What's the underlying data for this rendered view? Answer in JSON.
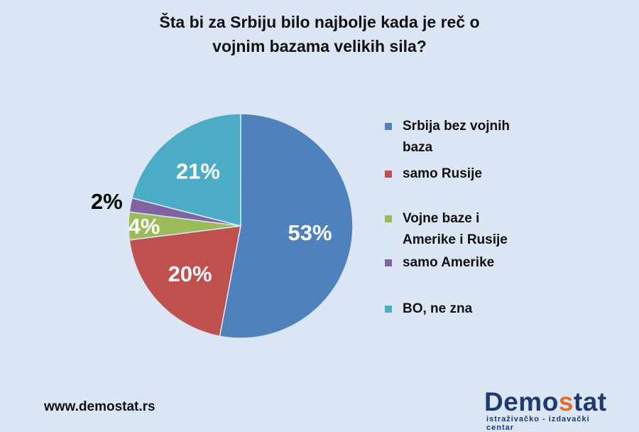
{
  "title": {
    "line1": "Šta bi za Srbiju bilo najbolje kada je reč o",
    "line2": "vojnim bazama velikih sila?"
  },
  "chart_data": {
    "type": "pie",
    "title": "Šta bi za Srbiju bilo najbolje kada je reč o vojnim bazama velikih sila?",
    "legend_position": "right",
    "slices": [
      {
        "label": "Srbija bez vojnih baza",
        "legend_lines": [
          "Srbija bez vojnih",
          "baza"
        ],
        "value": 53,
        "data_label": "53%",
        "color": "#4f81bd",
        "label_color": "#ffffff"
      },
      {
        "label": "samo Rusije",
        "legend_lines": [
          "samo Rusije"
        ],
        "value": 20,
        "data_label": "20%",
        "color": "#c0504d",
        "label_color": "#ffffff"
      },
      {
        "label": "Vojne baze i Amerike i Rusije",
        "legend_lines": [
          "Vojne baze i",
          "Amerike i Rusije"
        ],
        "value": 4,
        "data_label": "4%",
        "color": "#9bbb59",
        "label_color": "#ffffff"
      },
      {
        "label": "samo Amerike",
        "legend_lines": [
          "samo Amerike"
        ],
        "value": 2,
        "data_label": "2%",
        "color": "#8064a2",
        "label_color": "#000000"
      },
      {
        "label": "BO, ne zna",
        "legend_lines": [
          "BO, ne zna"
        ],
        "value": 21,
        "data_label": "21%",
        "color": "#4bacc6",
        "label_color": "#ffffff"
      }
    ]
  },
  "footer": {
    "website": "www.demostat.rs",
    "logo_part1": "Demo",
    "logo_accent": "s",
    "logo_part2": "tat",
    "logo_subtitle": "istraživačko - izdavački centar"
  }
}
